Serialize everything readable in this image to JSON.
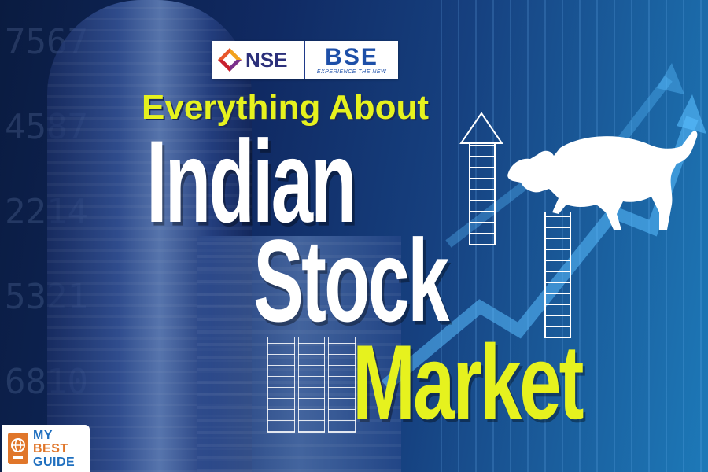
{
  "logos": {
    "nse": "NSE",
    "bse": "BSE",
    "bse_tagline": "EXPERIENCE THE NEW",
    "mybestguide": [
      "MY",
      "BEST",
      "GUIDE"
    ]
  },
  "headline": {
    "line1": "Everything About",
    "line2": "Indian",
    "line3": "Stock",
    "line4": "Market"
  },
  "colors": {
    "accent_yellow": "#e6f21e",
    "headline_white": "#ffffff",
    "background_navy": "#0b1f4a"
  },
  "icons": [
    "nse-logo-icon",
    "bull-icon",
    "up-arrow-icon",
    "passport-globe-icon"
  ]
}
